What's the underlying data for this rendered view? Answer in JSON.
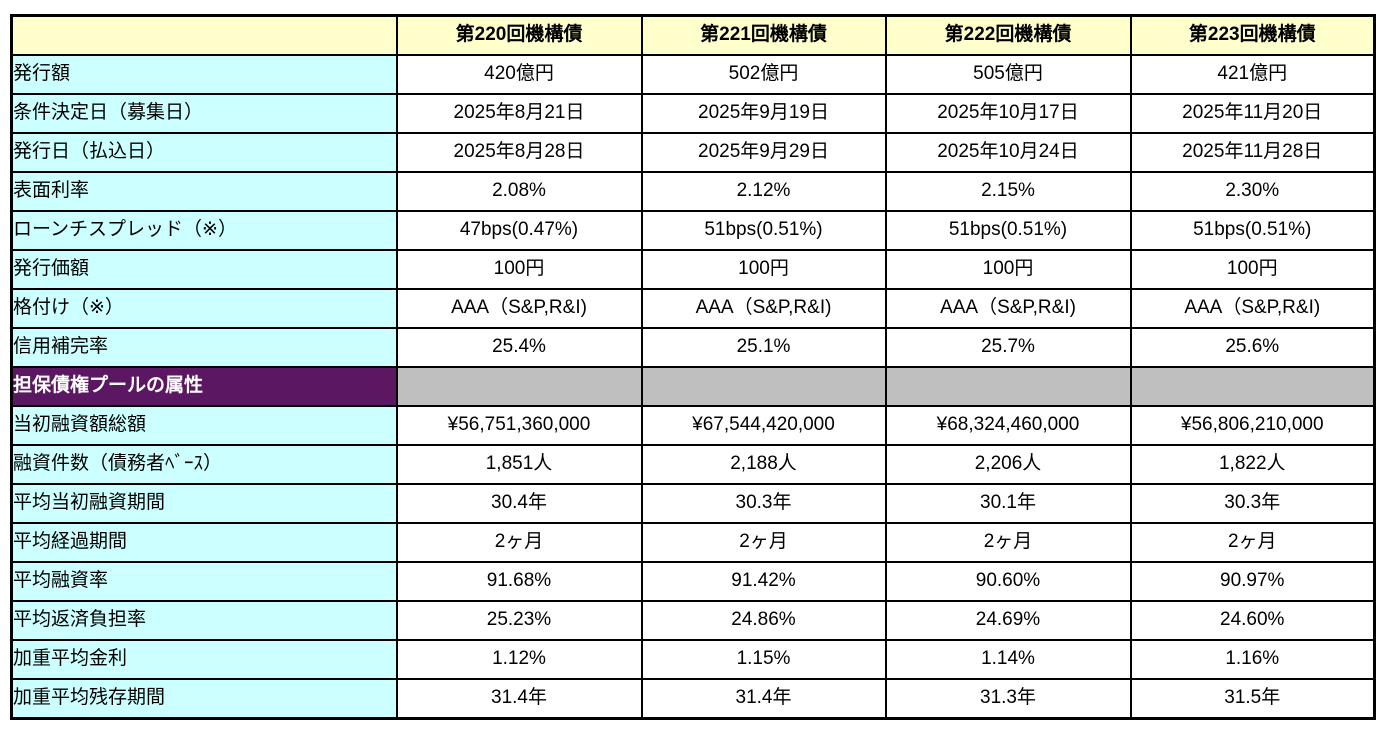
{
  "table": {
    "columns": [
      "第220回機構債",
      "第221回機構債",
      "第222回機構債",
      "第223回機構債"
    ],
    "rows": [
      {
        "type": "data",
        "label": "発行額",
        "values": [
          "420億円",
          "502億円",
          "505億円",
          "421億円"
        ]
      },
      {
        "type": "data",
        "label": "条件決定日（募集日）",
        "values": [
          "2025年8月21日",
          "2025年9月19日",
          "2025年10月17日",
          "2025年11月20日"
        ]
      },
      {
        "type": "data",
        "label": "発行日（払込日）",
        "values": [
          "2025年8月28日",
          "2025年9月29日",
          "2025年10月24日",
          "2025年11月28日"
        ]
      },
      {
        "type": "data",
        "label": "表面利率",
        "values": [
          "2.08%",
          "2.12%",
          "2.15%",
          "2.30%"
        ]
      },
      {
        "type": "data",
        "label": "ローンチスプレッド（※）",
        "values": [
          "47bps(0.47%)",
          "51bps(0.51%)",
          "51bps(0.51%)",
          "51bps(0.51%)"
        ]
      },
      {
        "type": "data",
        "label": "発行価額",
        "values": [
          "100円",
          "100円",
          "100円",
          "100円"
        ]
      },
      {
        "type": "data",
        "label": "格付け（※）",
        "values": [
          "AAA（S&P,R&I)",
          "AAA（S&P,R&I)",
          "AAA（S&P,R&I)",
          "AAA（S&P,R&I)"
        ]
      },
      {
        "type": "data",
        "label": "信用補完率",
        "values": [
          "25.4%",
          "25.1%",
          "25.7%",
          "25.6%"
        ]
      },
      {
        "type": "section",
        "label": "担保債権プールの属性",
        "values": [
          "",
          "",
          "",
          ""
        ]
      },
      {
        "type": "data",
        "label": "当初融資額総額",
        "values": [
          "¥56,751,360,000",
          "¥67,544,420,000",
          "¥68,324,460,000",
          "¥56,806,210,000"
        ]
      },
      {
        "type": "data",
        "label": "融資件数（債務者ﾍﾞｰｽ）",
        "values": [
          "1,851人",
          "2,188人",
          "2,206人",
          "1,822人"
        ]
      },
      {
        "type": "data",
        "label": "平均当初融資期間",
        "values": [
          "30.4年",
          "30.3年",
          "30.1年",
          "30.3年"
        ]
      },
      {
        "type": "data",
        "label": "平均経過期間",
        "values": [
          "2ヶ月",
          "2ヶ月",
          "2ヶ月",
          "2ヶ月"
        ]
      },
      {
        "type": "data",
        "label": "平均融資率",
        "values": [
          "91.68%",
          "91.42%",
          "90.60%",
          "90.97%"
        ]
      },
      {
        "type": "data",
        "label": "平均返済負担率",
        "values": [
          "25.23%",
          "24.86%",
          "24.69%",
          "24.60%"
        ]
      },
      {
        "type": "data",
        "label": "加重平均金利",
        "values": [
          "1.12%",
          "1.15%",
          "1.14%",
          "1.16%"
        ]
      },
      {
        "type": "data",
        "label": "加重平均残存期間",
        "values": [
          "31.4年",
          "31.4年",
          "31.3年",
          "31.5年"
        ]
      }
    ]
  },
  "colors": {
    "header_bg": "#FFFFCC",
    "label_bg": "#CCFFFF",
    "section_bg": "#5C1763",
    "section_text": "#FFFFFF",
    "disabled_cell_bg": "#BFBFBF",
    "grid_border": "#000000",
    "value_bg": "#FFFFFF"
  }
}
